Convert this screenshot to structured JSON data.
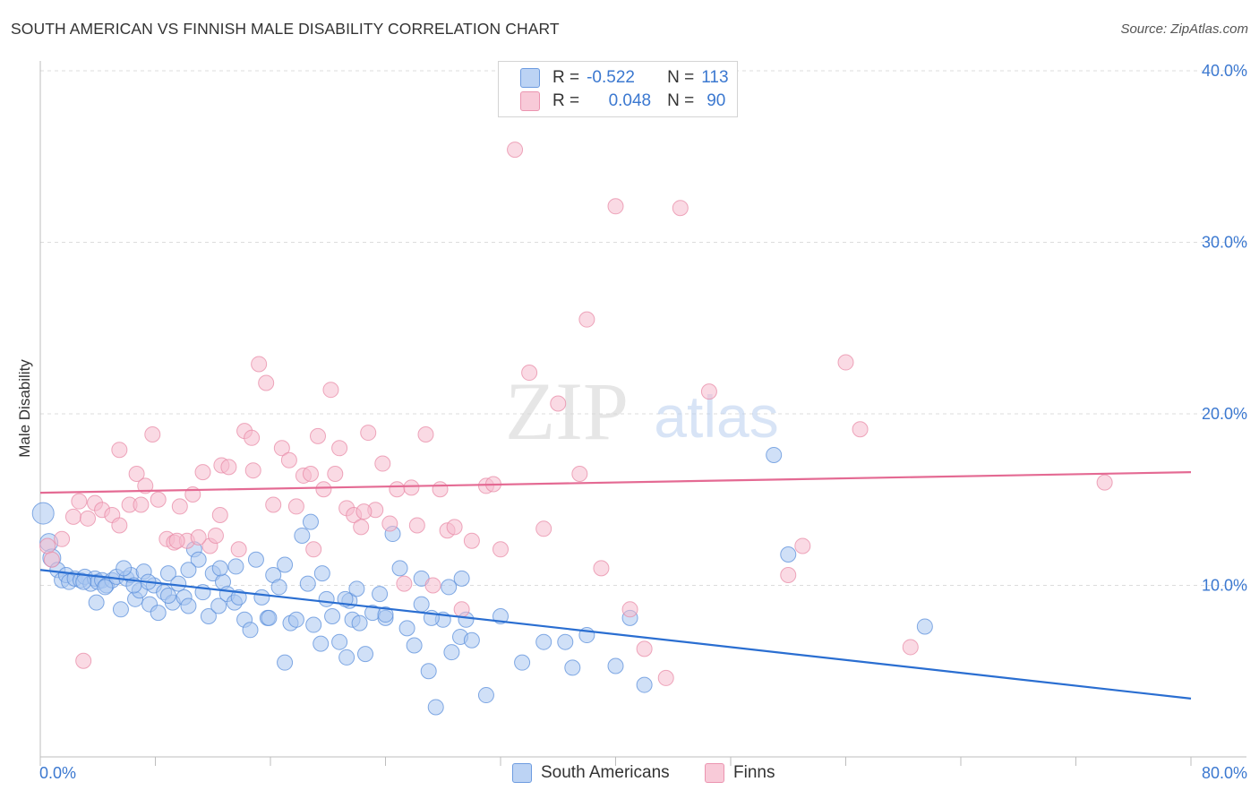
{
  "title": "SOUTH AMERICAN VS FINNISH MALE DISABILITY CORRELATION CHART",
  "source": "Source: ZipAtlas.com",
  "watermark": {
    "zip": "ZIP",
    "atlas": "atlas"
  },
  "legend": {
    "r_label": "R =",
    "n_label": "N =",
    "rows": [
      {
        "name": "South Americans",
        "r": "-0.522",
        "n": "113"
      },
      {
        "name": "Finns",
        "r": "0.048",
        "n": "90"
      }
    ]
  },
  "chart_data": {
    "type": "scatter",
    "title": "SOUTH AMERICAN VS FINNISH MALE DISABILITY CORRELATION CHART",
    "xlabel": "",
    "ylabel": "Male Disability",
    "xlim": [
      0,
      80
    ],
    "ylim": [
      0,
      40
    ],
    "x_tick_labels": [
      "0.0%",
      "80.0%"
    ],
    "y_tick_labels": [
      "10.0%",
      "20.0%",
      "30.0%",
      "40.0%"
    ],
    "y_ticks": [
      10,
      20,
      30,
      40
    ],
    "colors": {
      "south_americans_fill": "#a9c6f0",
      "south_americans_stroke": "#5b8fdb",
      "south_americans_line": "#2a6ed1",
      "finns_fill": "#f6bccd",
      "finns_stroke": "#e88ba7",
      "finns_line": "#e46a93",
      "tick_label": "#3b78d0"
    },
    "series": [
      {
        "name": "South Americans",
        "r": -0.522,
        "n": 113,
        "trend": {
          "x": [
            0,
            80
          ],
          "y": [
            10.9,
            3.4
          ]
        },
        "x": [
          0.2,
          0.6,
          0.8,
          1.2,
          1.5,
          1.8,
          2.0,
          2.4,
          2.8,
          3.1,
          3.5,
          3.8,
          4.0,
          4.3,
          4.6,
          5.0,
          5.3,
          5.6,
          6.0,
          6.3,
          6.6,
          6.9,
          7.2,
          7.6,
          7.9,
          8.2,
          8.6,
          8.9,
          9.2,
          9.6,
          10.0,
          10.3,
          10.7,
          11.0,
          11.3,
          11.7,
          12.0,
          12.4,
          12.7,
          13.0,
          13.5,
          13.8,
          14.2,
          14.6,
          15.0,
          15.4,
          15.8,
          16.2,
          16.6,
          17.0,
          17.4,
          17.8,
          18.2,
          18.6,
          19.0,
          19.5,
          19.9,
          20.3,
          20.8,
          21.3,
          21.7,
          22.2,
          22.6,
          23.1,
          23.6,
          24.0,
          24.5,
          25.0,
          25.5,
          26.0,
          26.5,
          27.0,
          27.5,
          28.0,
          28.6,
          29.2,
          30.0,
          31.0,
          32.0,
          33.5,
          35.0,
          36.5,
          37.0,
          38.0,
          40.0,
          41.0,
          42.0,
          51.0,
          52.0,
          61.5,
          10.3,
          7.5,
          3.9,
          5.8,
          8.9,
          13.6,
          15.9,
          18.8,
          19.6,
          21.5,
          22.0,
          24.0,
          26.5,
          28.4,
          29.3,
          29.6,
          3.0,
          4.5,
          6.5,
          12.5,
          17.0,
          21.2,
          27.2
        ],
        "y": [
          14.2,
          12.5,
          11.6,
          10.9,
          10.3,
          10.6,
          10.2,
          10.4,
          10.3,
          10.5,
          10.1,
          10.4,
          10.2,
          10.3,
          10.0,
          10.3,
          10.5,
          8.6,
          10.4,
          10.6,
          9.2,
          9.7,
          10.8,
          8.9,
          10.0,
          8.4,
          9.6,
          10.7,
          9.0,
          10.1,
          9.3,
          8.8,
          12.1,
          11.5,
          9.6,
          8.2,
          10.7,
          8.8,
          10.2,
          9.5,
          9.0,
          9.3,
          8.0,
          7.4,
          11.5,
          9.3,
          8.1,
          10.6,
          9.9,
          5.5,
          7.8,
          8.0,
          12.9,
          10.1,
          7.7,
          6.6,
          9.2,
          8.2,
          6.7,
          5.8,
          8.0,
          7.8,
          6.0,
          8.4,
          9.5,
          8.1,
          13.0,
          11.0,
          7.5,
          6.5,
          10.4,
          5.0,
          2.9,
          8.0,
          6.1,
          7.0,
          6.8,
          3.6,
          8.2,
          5.5,
          6.7,
          6.7,
          5.2,
          7.1,
          5.3,
          8.1,
          4.2,
          17.6,
          11.8,
          7.6,
          10.9,
          10.2,
          9.0,
          11.0,
          9.4,
          11.1,
          8.1,
          13.7,
          10.7,
          9.1,
          9.8,
          8.3,
          8.9,
          9.9,
          10.4,
          8.0,
          10.2,
          9.9,
          10.0,
          11.0,
          11.2,
          9.2,
          8.1
        ]
      },
      {
        "name": "Finns",
        "r": 0.048,
        "n": 90,
        "trend": {
          "x": [
            0,
            80
          ],
          "y": [
            15.4,
            16.6
          ]
        },
        "x": [
          0.5,
          0.8,
          1.5,
          2.3,
          2.7,
          3.3,
          3.8,
          4.3,
          5.0,
          5.5,
          6.2,
          6.7,
          7.3,
          7.8,
          8.2,
          8.8,
          9.3,
          9.7,
          10.2,
          10.6,
          11.3,
          11.8,
          12.2,
          12.6,
          13.1,
          13.8,
          14.2,
          14.7,
          15.2,
          15.7,
          16.2,
          16.8,
          17.3,
          17.8,
          18.3,
          18.8,
          19.3,
          19.7,
          20.2,
          20.8,
          21.3,
          21.8,
          22.3,
          22.8,
          23.3,
          23.8,
          24.3,
          24.8,
          25.3,
          25.8,
          26.2,
          26.8,
          27.3,
          27.8,
          28.3,
          28.8,
          29.3,
          30.0,
          31.0,
          32.0,
          33.0,
          34.0,
          35.0,
          36.0,
          37.5,
          38.0,
          39.0,
          40.0,
          41.0,
          42.0,
          43.5,
          44.5,
          46.5,
          52.0,
          53.0,
          56.0,
          57.0,
          60.5,
          74.0,
          3.0,
          5.5,
          7.0,
          9.5,
          11.0,
          12.5,
          14.8,
          19.0,
          20.5,
          22.5,
          31.5
        ],
        "y": [
          12.3,
          11.5,
          12.7,
          14.0,
          14.9,
          13.9,
          14.8,
          14.4,
          14.1,
          13.5,
          14.7,
          16.5,
          15.8,
          18.8,
          15.0,
          12.7,
          12.5,
          14.6,
          12.6,
          15.3,
          16.6,
          12.3,
          12.9,
          17.0,
          16.9,
          12.1,
          19.0,
          18.6,
          22.9,
          21.8,
          14.7,
          18.0,
          17.3,
          14.6,
          16.4,
          16.5,
          18.7,
          15.6,
          21.4,
          18.0,
          14.5,
          14.1,
          13.4,
          18.9,
          14.4,
          17.1,
          13.6,
          15.6,
          10.1,
          15.7,
          13.5,
          18.8,
          10.0,
          15.6,
          13.2,
          13.4,
          8.6,
          12.6,
          15.8,
          12.1,
          35.4,
          22.4,
          13.3,
          20.6,
          16.5,
          25.5,
          11.0,
          32.1,
          8.6,
          6.3,
          4.6,
          32.0,
          21.3,
          10.6,
          12.3,
          23.0,
          19.1,
          6.4,
          16.0,
          5.6,
          17.9,
          14.7,
          12.6,
          12.8,
          14.1,
          16.7,
          12.1,
          16.5,
          14.3,
          15.9
        ]
      }
    ]
  }
}
